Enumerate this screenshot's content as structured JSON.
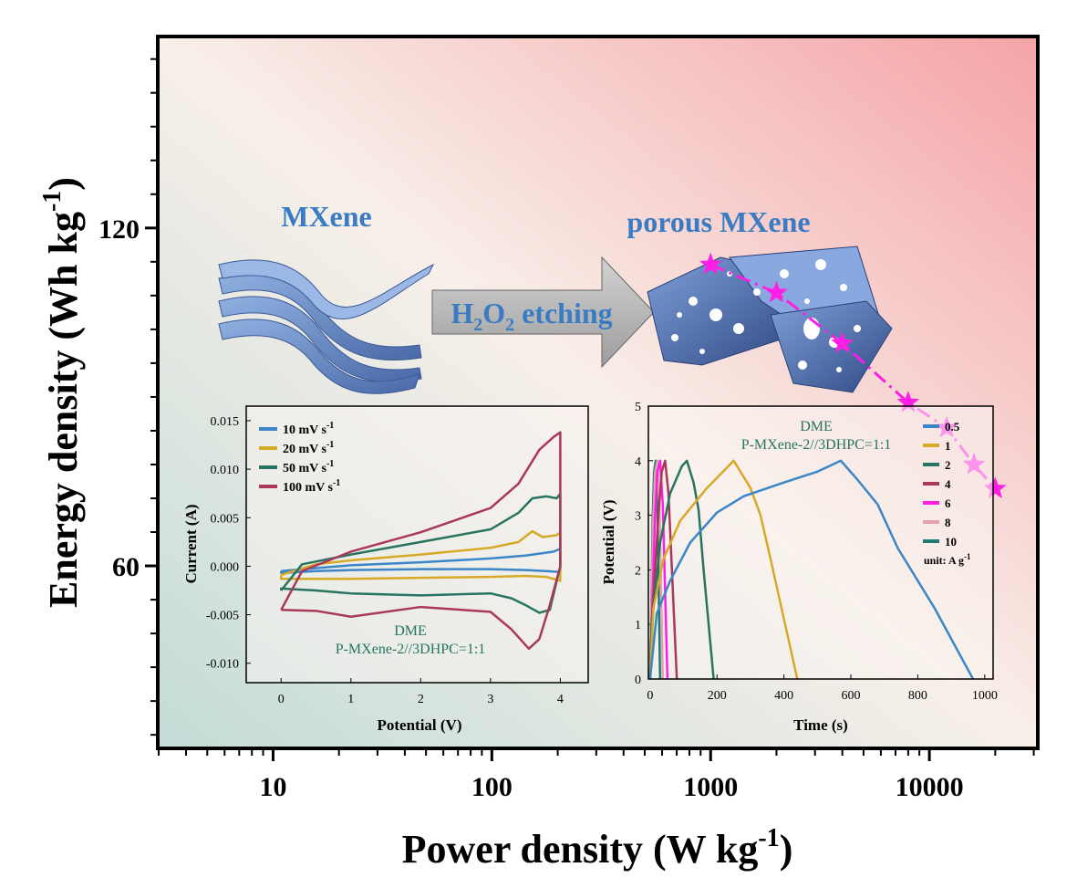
{
  "chart_data": [
    {
      "id": "main",
      "type": "scatter",
      "xlabel_main": "Power density (W kg",
      "xlabel_sup": "-1",
      "xlabel_close": ")",
      "ylabel_main": "Energy density (Wh kg",
      "ylabel_sup": "-1",
      "ylabel_close": ")",
      "x_scale": "log",
      "xlim": [
        2.97,
        31300
      ],
      "ylim": [
        27.6,
        154
      ],
      "x_ticks": [
        10,
        100,
        1000,
        10000
      ],
      "x_tick_labels": [
        "10",
        "100",
        "1000",
        "10000"
      ],
      "y_ticks": [
        60,
        120
      ],
      "y_tick_labels": [
        "60",
        "120"
      ],
      "series": [
        {
          "marker": "star",
          "line": "dash-dot",
          "color": "#ff1ee6",
          "x": [
            1000,
            2000,
            4000,
            8000,
            12000,
            16000,
            20000
          ],
          "y": [
            113.5,
            108.5,
            99.5,
            89.0,
            84.5,
            78.0,
            73.7
          ]
        }
      ],
      "background_gradient": [
        "#c9dfdb",
        "#f7ece6",
        "#f6aaad"
      ]
    },
    {
      "id": "cv",
      "type": "line",
      "xlabel": "Potential (V)",
      "ylabel": "Current (A)",
      "xlim": [
        -0.5,
        4.4
      ],
      "ylim": [
        -0.012,
        0.0165
      ],
      "x_ticks": [
        0,
        1,
        2,
        3,
        4
      ],
      "x_tick_labels": [
        "0",
        "1",
        "2",
        "3",
        "4"
      ],
      "y_ticks": [
        0.015,
        0.01,
        0.005,
        0.0,
        -0.005,
        -0.01
      ],
      "y_tick_labels": [
        "0.015",
        "0.010",
        "0.005",
        "0.000",
        "-0.005",
        "-0.010"
      ],
      "annotation": [
        "DME",
        "P-MXene-2//3DHPC=1:1"
      ],
      "legend_position": "top-left",
      "series": [
        {
          "name": "10 mV s",
          "name_sup": "-1",
          "color": "#3a86c8",
          "upper_x": [
            0,
            0.5,
            1,
            2,
            3,
            3.5,
            3.9,
            4.0
          ],
          "upper_y": [
            -0.0005,
            -0.0002,
            0.0001,
            0.0004,
            0.0008,
            0.0011,
            0.0015,
            0.0018
          ],
          "lower_x": [
            4.0,
            3.8,
            3.5,
            3,
            2,
            1,
            0.5,
            0
          ],
          "lower_y": [
            -0.0006,
            -0.0005,
            -0.0004,
            -0.0003,
            -0.0003,
            -0.0004,
            -0.0005,
            -0.0007
          ]
        },
        {
          "name": "20 mV s",
          "name_sup": "-1",
          "color": "#d7a928",
          "upper_x": [
            0,
            0.5,
            1,
            2,
            3,
            3.4,
            3.6,
            3.75,
            3.95,
            4.0
          ],
          "upper_y": [
            -0.0009,
            0.0002,
            0.0006,
            0.0012,
            0.0019,
            0.0025,
            0.0036,
            0.003,
            0.0032,
            0.0035
          ],
          "lower_x": [
            4.0,
            3.8,
            3.5,
            3,
            2,
            1,
            0.5,
            0
          ],
          "lower_y": [
            -0.0015,
            -0.0011,
            -0.001,
            -0.0011,
            -0.0012,
            -0.0013,
            -0.0013,
            -0.0013
          ]
        },
        {
          "name": "50 mV s",
          "name_sup": "-1",
          "color": "#277460",
          "upper_x": [
            0,
            0.3,
            1,
            2,
            3,
            3.4,
            3.6,
            3.8,
            3.95,
            4.0
          ],
          "upper_y": [
            -0.0025,
            0.0002,
            0.0012,
            0.0025,
            0.0038,
            0.0055,
            0.007,
            0.0072,
            0.007,
            0.0075
          ],
          "lower_x": [
            4.0,
            3.85,
            3.7,
            3.5,
            3.3,
            3,
            2,
            1,
            0.5,
            0
          ],
          "lower_y": [
            0,
            -0.0045,
            -0.0048,
            -0.004,
            -0.0033,
            -0.0028,
            -0.003,
            -0.0028,
            -0.0025,
            -0.0023
          ]
        },
        {
          "name": "100 mV s",
          "name_sup": "-1",
          "color": "#a9385a",
          "upper_x": [
            0,
            0.3,
            1,
            2,
            3,
            3.4,
            3.7,
            3.9,
            4.0
          ],
          "upper_y": [
            -0.0045,
            -0.0005,
            0.0015,
            0.0035,
            0.006,
            0.0085,
            0.012,
            0.0133,
            0.0138
          ],
          "lower_x": [
            4.0,
            3.85,
            3.7,
            3.55,
            3.3,
            3,
            2,
            1,
            0.5,
            0
          ],
          "lower_y": [
            0,
            -0.004,
            -0.0075,
            -0.0085,
            -0.0065,
            -0.0047,
            -0.0042,
            -0.0052,
            -0.0046,
            -0.0045
          ]
        }
      ]
    },
    {
      "id": "gcd",
      "type": "line",
      "xlabel": "Time (s)",
      "ylabel": "Potential (V)",
      "xlim": [
        -5,
        1025
      ],
      "ylim": [
        0,
        5
      ],
      "x_ticks": [
        0,
        200,
        400,
        600,
        800,
        1000
      ],
      "x_tick_labels": [
        "0",
        "200",
        "400",
        "600",
        "800",
        "1000"
      ],
      "y_ticks": [
        0,
        1,
        2,
        3,
        4,
        5
      ],
      "y_tick_labels": [
        "0",
        "1",
        "2",
        "3",
        "4",
        "5"
      ],
      "annotation": [
        "DME",
        "P-MXene-2//3DHPC=1:1"
      ],
      "legend_position": "top-right",
      "legend_unit_text": "unit: A g",
      "legend_unit_sup": "-1",
      "series": [
        {
          "name": "0.5",
          "color": "#3a86c8",
          "t": [
            0,
            20,
            60,
            120,
            200,
            280,
            400,
            500,
            570,
            620,
            680,
            740,
            850,
            965
          ],
          "v": [
            0,
            1.2,
            1.8,
            2.5,
            3.05,
            3.35,
            3.6,
            3.8,
            4.0,
            3.65,
            3.2,
            2.4,
            1.3,
            0
          ]
        },
        {
          "name": "1",
          "color": "#d7a928",
          "t": [
            0,
            10,
            40,
            90,
            170,
            250,
            300,
            330,
            360,
            440
          ],
          "v": [
            0,
            1.3,
            2.2,
            2.9,
            3.5,
            4.0,
            3.5,
            3.0,
            2.2,
            0
          ]
        },
        {
          "name": "2",
          "color": "#277460",
          "t": [
            0,
            5,
            30,
            60,
            95,
            110,
            130,
            145,
            160,
            190
          ],
          "v": [
            0,
            1.0,
            2.5,
            3.4,
            3.9,
            4.0,
            3.6,
            3.1,
            2.0,
            0
          ]
        },
        {
          "name": "4",
          "color": "#a9385a",
          "t": [
            0,
            5,
            25,
            35,
            45,
            55,
            80
          ],
          "v": [
            0,
            1.0,
            3.0,
            3.8,
            4.0,
            3.4,
            0
          ]
        },
        {
          "name": "6",
          "color": "#ff1ee6",
          "t": [
            0,
            5,
            15,
            22,
            30,
            38,
            52
          ],
          "v": [
            0,
            1.0,
            3.0,
            3.8,
            4.0,
            3.2,
            0
          ]
        },
        {
          "name": "8",
          "color": "#e3a3aa",
          "t": [
            0,
            3,
            10,
            15,
            22,
            28,
            38
          ],
          "v": [
            0,
            1.0,
            3.0,
            3.8,
            4.0,
            3.2,
            0
          ]
        },
        {
          "name": "10",
          "color": "#1e7a72",
          "t": [
            0,
            3,
            8,
            12,
            17,
            22,
            30
          ],
          "v": [
            0,
            1.0,
            3.0,
            3.8,
            4.0,
            3.2,
            0
          ]
        }
      ]
    }
  ],
  "illustration": {
    "left_label": "MXene",
    "right_label": "porous MXene",
    "arrow_text_parts": [
      "H",
      "2",
      "O",
      "2",
      " etching"
    ]
  }
}
